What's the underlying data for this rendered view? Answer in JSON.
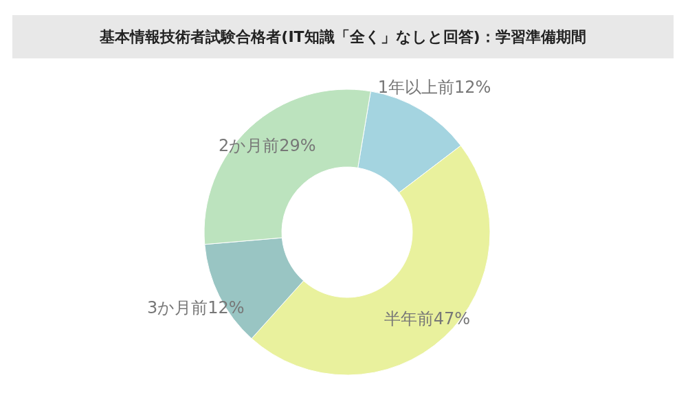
{
  "chart_data": {
    "type": "donut",
    "title": "基本情報技術者試験合格者(IT知識「全く」なしと回答)：学習準備期間",
    "categories": [
      "1年以上前",
      "半年前",
      "3か月前",
      "2か月前"
    ],
    "values": [
      12,
      47,
      12,
      29
    ],
    "value_labels": [
      "12%",
      "47%",
      "12%",
      "29%"
    ],
    "colors": [
      "#a4d4e0",
      "#e9f19d",
      "#99c5c3",
      "#bce3be"
    ]
  }
}
